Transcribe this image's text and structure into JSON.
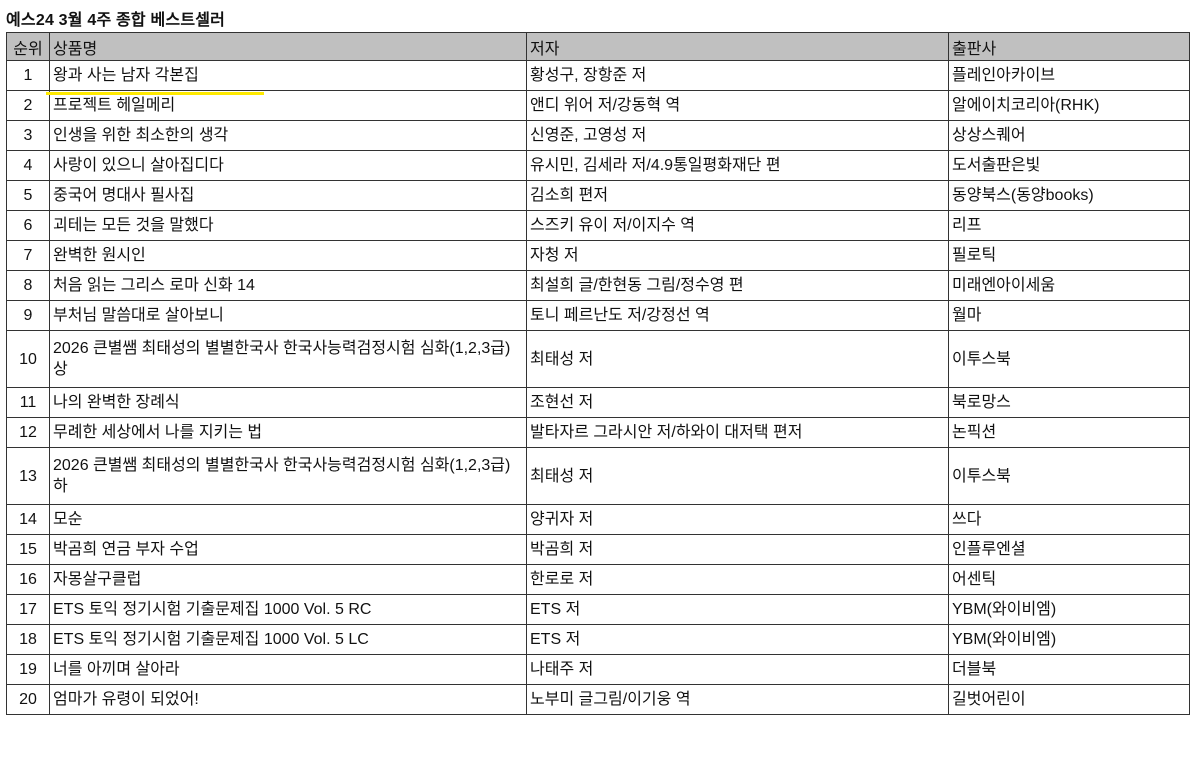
{
  "title": "예스24 3월 4주 종합 베스트셀러",
  "highlight_color": "#ffea00",
  "header_bg": "#c0c0c0",
  "columns": {
    "rank": "순위",
    "title": "상품명",
    "author": "저자",
    "publisher": "출판사"
  },
  "rows": [
    {
      "rank": "1",
      "title": "왕과 사는 남자 각본집",
      "author": "황성구, 장항준 저",
      "publisher": "플레인아카이브",
      "highlighted": true
    },
    {
      "rank": "2",
      "title": "프로젝트 헤일메리",
      "author": "앤디 위어 저/강동혁 역",
      "publisher": "알에이치코리아(RHK)"
    },
    {
      "rank": "3",
      "title": "인생을 위한 최소한의 생각",
      "author": "신영준, 고영성 저",
      "publisher": "상상스퀘어"
    },
    {
      "rank": "4",
      "title": "사랑이 있으니 살아집디다",
      "author": "유시민, 김세라 저/4.9통일평화재단 편",
      "publisher": "도서출판은빛"
    },
    {
      "rank": "5",
      "title": "중국어 명대사 필사집",
      "author": "김소희 편저",
      "publisher": "동양북스(동양books)"
    },
    {
      "rank": "6",
      "title": "괴테는 모든 것을 말했다",
      "author": "스즈키 유이 저/이지수 역",
      "publisher": "리프"
    },
    {
      "rank": "7",
      "title": "완벽한 원시인",
      "author": "자청 저",
      "publisher": "필로틱"
    },
    {
      "rank": "8",
      "title": "처음 읽는 그리스 로마 신화 14",
      "author": "최설희 글/한현동 그림/정수영 편",
      "publisher": "미래엔아이세움"
    },
    {
      "rank": "9",
      "title": "부처님 말씀대로 살아보니",
      "author": "토니 페르난도 저/강정선 역",
      "publisher": "월마"
    },
    {
      "rank": "10",
      "title": "2026 큰별쌤 최태성의 별별한국사 한국사능력검정시험 심화(1,2,3급) 상",
      "author": "최태성 저",
      "publisher": "이투스북"
    },
    {
      "rank": "11",
      "title": "나의 완벽한 장례식",
      "author": "조현선 저",
      "publisher": "북로망스"
    },
    {
      "rank": "12",
      "title": "무례한 세상에서 나를 지키는 법",
      "author": "발타자르 그라시안 저/하와이 대저택 편저",
      "publisher": "논픽션"
    },
    {
      "rank": "13",
      "title": "2026 큰별쌤 최태성의 별별한국사 한국사능력검정시험 심화(1,2,3급) 하",
      "author": "최태성 저",
      "publisher": "이투스북"
    },
    {
      "rank": "14",
      "title": "모순",
      "author": "양귀자 저",
      "publisher": "쓰다"
    },
    {
      "rank": "15",
      "title": "박곰희 연금 부자 수업",
      "author": "박곰희 저",
      "publisher": "인플루엔셜"
    },
    {
      "rank": "16",
      "title": "자몽살구클럽",
      "author": "한로로 저",
      "publisher": "어센틱"
    },
    {
      "rank": "17",
      "title": "ETS 토익 정기시험 기출문제집 1000 Vol. 5 RC",
      "author": "ETS 저",
      "publisher": "YBM(와이비엠)"
    },
    {
      "rank": "18",
      "title": "ETS 토익 정기시험 기출문제집 1000 Vol. 5 LC",
      "author": "ETS 저",
      "publisher": "YBM(와이비엠)"
    },
    {
      "rank": "19",
      "title": "너를 아끼며 살아라",
      "author": "나태주 저",
      "publisher": "더블북"
    },
    {
      "rank": "20",
      "title": "엄마가 유령이 되었어!",
      "author": "노부미 글그림/이기웅 역",
      "publisher": "길벗어린이"
    }
  ]
}
